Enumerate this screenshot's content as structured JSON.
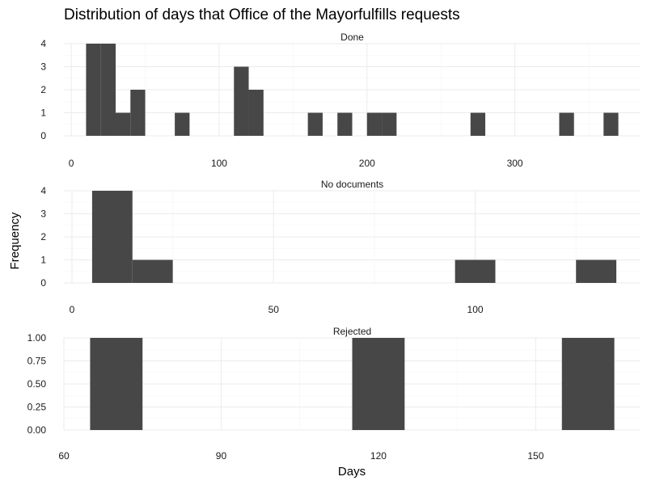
{
  "chart_data": {
    "type": "bar",
    "title": "Distribution of days that Office of the Mayorfulfills requests",
    "xlabel": "Days",
    "ylabel": "Frequency",
    "grid": true,
    "legend": "none",
    "bar_color": "#474747",
    "panels": [
      {
        "name": "Done",
        "xlim": [
          -5,
          385
        ],
        "ylim": [
          0,
          4
        ],
        "x_ticks": [
          0,
          100,
          200,
          300
        ],
        "y_ticks": [
          0,
          1,
          2,
          3,
          4
        ],
        "y_tick_labels": [
          "0",
          "1",
          "2",
          "3",
          "4"
        ],
        "bin_width": 10,
        "bins": [
          {
            "x": 15,
            "count": 4
          },
          {
            "x": 25,
            "count": 4
          },
          {
            "x": 35,
            "count": 1
          },
          {
            "x": 45,
            "count": 2
          },
          {
            "x": 75,
            "count": 1
          },
          {
            "x": 115,
            "count": 3
          },
          {
            "x": 125,
            "count": 2
          },
          {
            "x": 165,
            "count": 1
          },
          {
            "x": 185,
            "count": 1
          },
          {
            "x": 205,
            "count": 1
          },
          {
            "x": 215,
            "count": 1
          },
          {
            "x": 275,
            "count": 1
          },
          {
            "x": 335,
            "count": 1
          },
          {
            "x": 365,
            "count": 1
          }
        ]
      },
      {
        "name": "No documents",
        "xlim": [
          -2,
          141
        ],
        "ylim": [
          0,
          4
        ],
        "x_ticks": [
          0,
          50,
          100
        ],
        "y_ticks": [
          0,
          1,
          2,
          3,
          4
        ],
        "y_tick_labels": [
          "0",
          "1",
          "2",
          "3",
          "4"
        ],
        "bin_width": 10,
        "bins": [
          {
            "x": 10,
            "count": 4
          },
          {
            "x": 20,
            "count": 1
          },
          {
            "x": 100,
            "count": 1
          },
          {
            "x": 130,
            "count": 1
          }
        ]
      },
      {
        "name": "Rejected",
        "xlim": [
          60,
          170
        ],
        "ylim": [
          0,
          1
        ],
        "x_ticks": [
          60,
          90,
          120,
          150
        ],
        "y_ticks": [
          0,
          0.25,
          0.5,
          0.75,
          1
        ],
        "y_tick_labels": [
          "0.00",
          "0.25",
          "0.50",
          "0.75",
          "1.00"
        ],
        "bin_width": 10,
        "bins": [
          {
            "x": 70,
            "count": 1
          },
          {
            "x": 120,
            "count": 1
          },
          {
            "x": 160,
            "count": 1
          }
        ]
      }
    ]
  }
}
